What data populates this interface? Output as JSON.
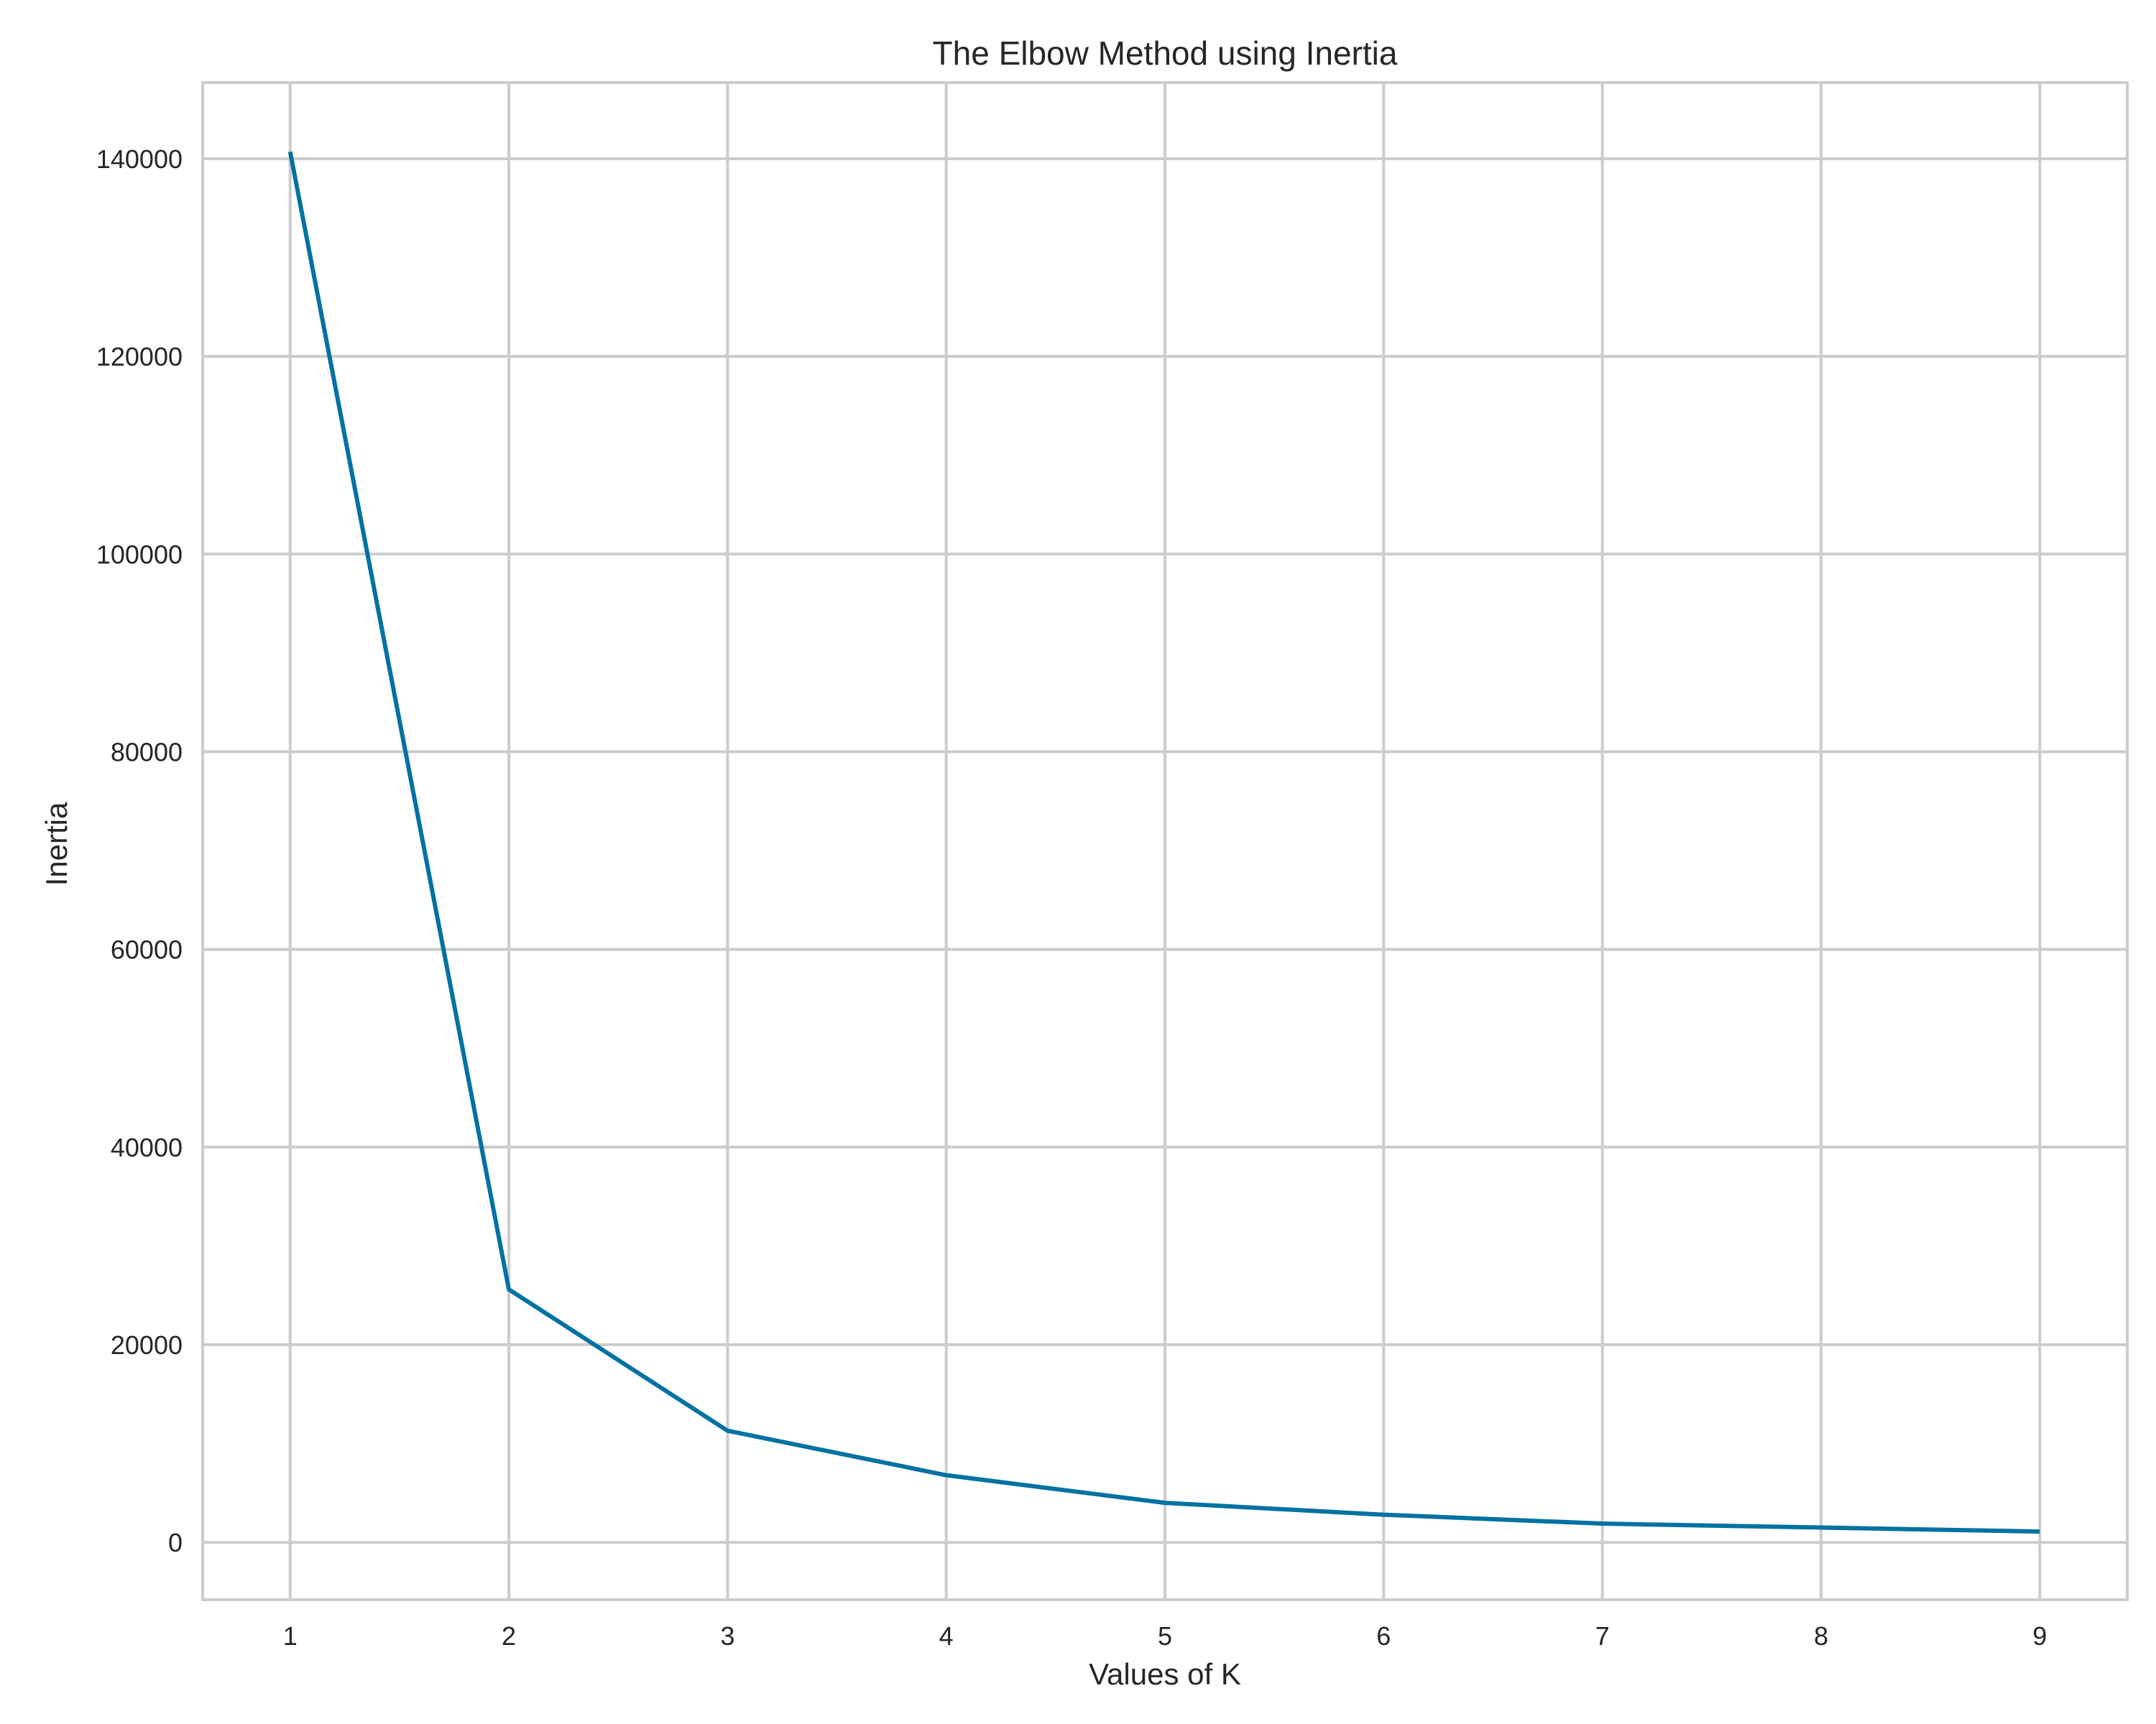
{
  "chart_data": {
    "type": "line",
    "title": "The Elbow Method using Inertia",
    "xlabel": "Values of K",
    "ylabel": "Inertia",
    "x": [
      1,
      2,
      3,
      4,
      5,
      6,
      7,
      8,
      9
    ],
    "series": [
      {
        "values": [
          140700,
          25600,
          11300,
          6800,
          4000,
          2800,
          1900,
          1500,
          1100
        ],
        "color": "#0072a2"
      }
    ],
    "xlim": [
      0.6,
      9.4
    ],
    "ylim": [
      -5800,
      147700
    ],
    "xticks": [
      1,
      2,
      3,
      4,
      5,
      6,
      7,
      8,
      9
    ],
    "yticks": [
      0,
      20000,
      40000,
      60000,
      80000,
      100000,
      120000,
      140000
    ],
    "grid": true,
    "legend": "none",
    "grid_color": "#cccccc",
    "frame_color": "#cccccc"
  }
}
